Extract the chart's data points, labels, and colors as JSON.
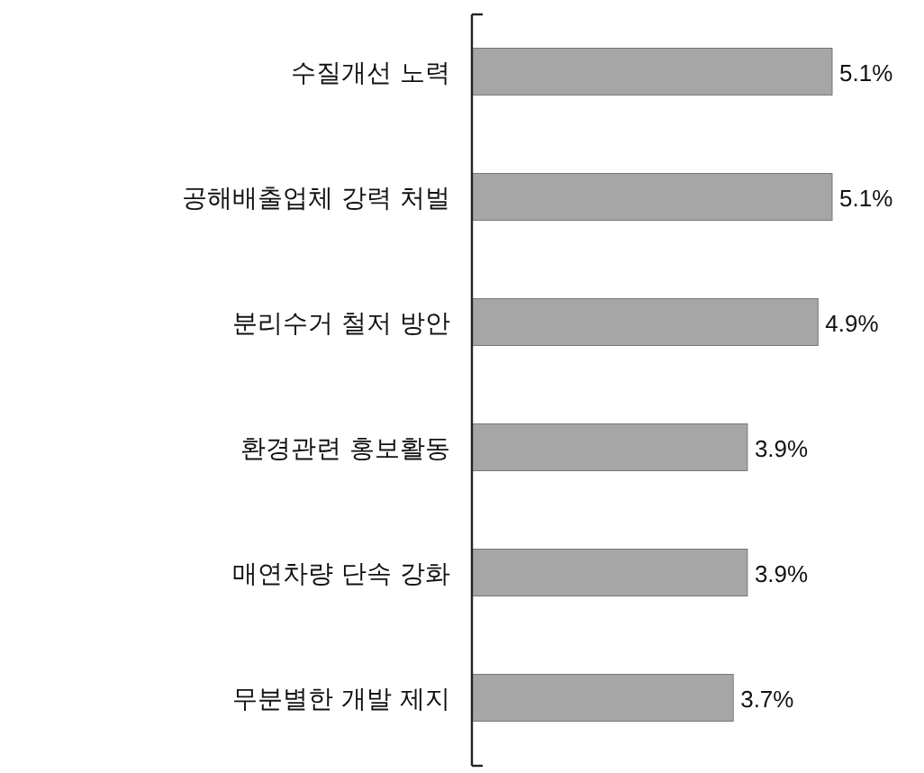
{
  "chart_data": {
    "type": "bar",
    "orientation": "horizontal",
    "categories": [
      "수질개선 노력",
      "공해배출업체 강력 처벌",
      "분리수거 철저 방안",
      "환경관련 홍보활동",
      "매연차량 단속 강화",
      "무분별한 개발 제지"
    ],
    "values": [
      5.1,
      5.1,
      4.9,
      3.9,
      3.9,
      3.7
    ],
    "value_labels": [
      "5.1%",
      "5.1%",
      "4.9%",
      "3.9%",
      "3.9%",
      "3.7%"
    ],
    "color": "#a6a6a6"
  }
}
